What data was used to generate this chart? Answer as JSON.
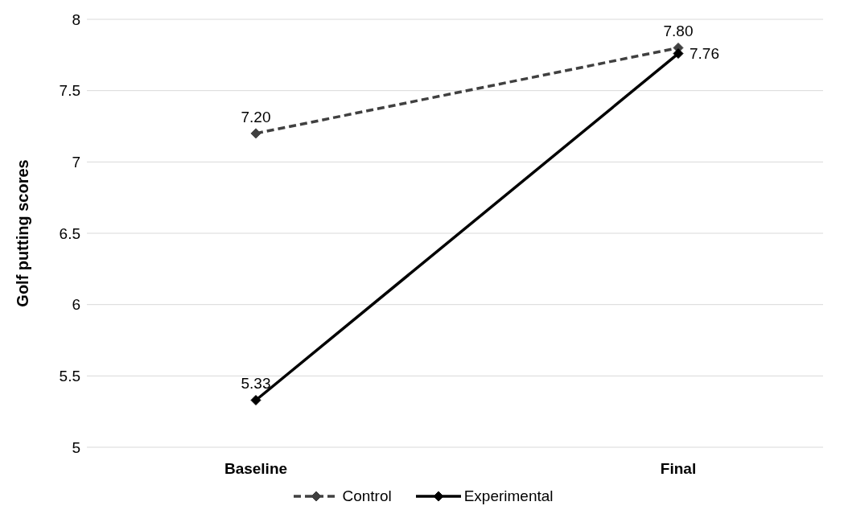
{
  "chart_data": {
    "type": "line",
    "ylabel": "Golf putting scores",
    "categories": [
      "Baseline",
      "Final"
    ],
    "series": [
      {
        "name": "Control",
        "color": "#404040",
        "values": [
          7.2,
          7.8
        ],
        "value_labels": [
          "7.20",
          "7.80"
        ],
        "line_style": "dashed"
      },
      {
        "name": "Experimental",
        "color": "#000000",
        "values": [
          5.33,
          7.76
        ],
        "value_labels": [
          "5.33",
          "7.76"
        ],
        "line_style": "solid"
      }
    ],
    "ylim": [
      5,
      8
    ],
    "yticks": [
      5,
      5.5,
      6,
      6.5,
      7,
      7.5,
      8
    ],
    "grid": "y",
    "legend": "bottom",
    "marker": "diamond"
  }
}
